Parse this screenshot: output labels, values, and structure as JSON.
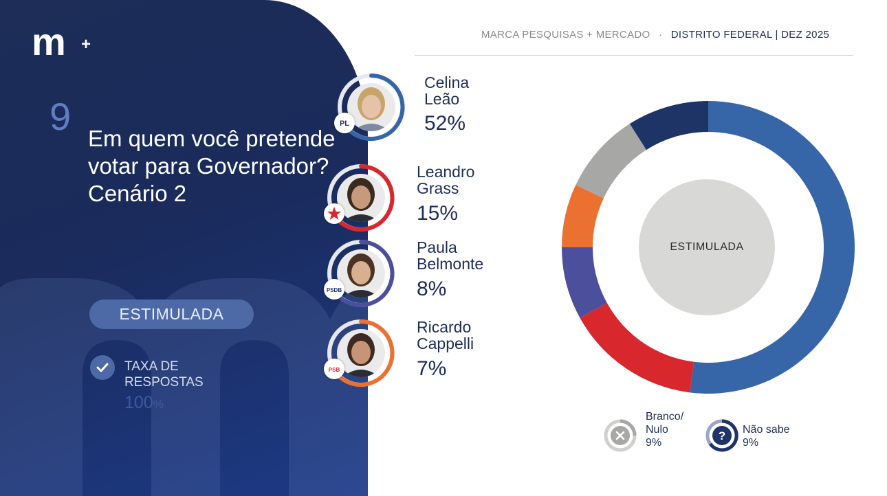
{
  "header": {
    "source": "MARCA PESQUISAS + MERCADO",
    "separator": "·",
    "region": "DISTRITO FEDERAL |  DEZ 2025"
  },
  "logo": {
    "text": "m",
    "plus": "+"
  },
  "question": {
    "number": "9",
    "text": "Em quem você pretende votar para Governador? Cenário 2"
  },
  "mode_label": "ESTIMULADA",
  "response_rate": {
    "label": "TAXA DE RESPOSTAS",
    "value": "100",
    "unit": "%"
  },
  "candidates": [
    {
      "name_line1": "Celina",
      "name_line2": "Leão",
      "pct_label": "52%",
      "party": "PL",
      "color": "#3766a8"
    },
    {
      "name_line1": "Leandro",
      "name_line2": "Grass",
      "pct_label": "15%",
      "party": "PT",
      "color": "#d9272e"
    },
    {
      "name_line1": "Paula",
      "name_line2": "Belmonte",
      "pct_label": "8%",
      "party": "PSDB",
      "color": "#4b4f9c"
    },
    {
      "name_line1": "Ricardo",
      "name_line2": "Cappelli",
      "pct_label": "7%",
      "party": "PSB",
      "color": "#ea7130"
    }
  ],
  "legend": [
    {
      "label_line1": "Branco/",
      "label_line2": "Nulo",
      "pct_label": "9%",
      "icon": "x-icon",
      "color": "#a7a8a6"
    },
    {
      "label_line1": "Não sabe",
      "label_line2": "",
      "pct_label": "9%",
      "icon": "question-icon",
      "color": "#1e3366"
    }
  ],
  "chart_data": {
    "type": "pie",
    "title": "",
    "center_label": "ESTIMULADA",
    "categories": [
      "Celina Leão",
      "Leandro Grass",
      "Paula Belmonte",
      "Ricardo Cappelli",
      "Branco/Nulo",
      "Não sabe"
    ],
    "values": [
      52,
      15,
      8,
      7,
      9,
      9
    ],
    "colors": [
      "#3766a8",
      "#d9272e",
      "#4b4f9c",
      "#ea7130",
      "#a7a8a6",
      "#1e3366"
    ],
    "legend": "bottom"
  }
}
